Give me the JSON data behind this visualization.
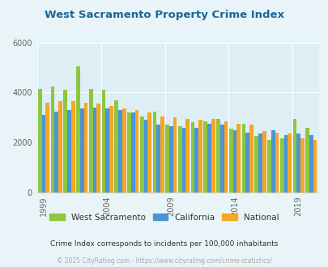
{
  "title": "West Sacramento Property Crime Index",
  "title_color": "#1a6699",
  "years": [
    1999,
    2000,
    2001,
    2002,
    2003,
    2004,
    2005,
    2006,
    2007,
    2008,
    2009,
    2010,
    2011,
    2012,
    2013,
    2014,
    2015,
    2016,
    2017,
    2018,
    2019,
    2020
  ],
  "west_sac": [
    4150,
    4250,
    4100,
    5050,
    4150,
    4100,
    3700,
    3200,
    3050,
    3250,
    2700,
    2650,
    2800,
    2850,
    2950,
    2550,
    2750,
    2250,
    2100,
    2150,
    2950,
    2600
  ],
  "california": [
    3100,
    3250,
    3300,
    3350,
    3400,
    3350,
    3300,
    3200,
    2900,
    2700,
    2650,
    2600,
    2600,
    2750,
    2700,
    2500,
    2400,
    2350,
    2500,
    2300,
    2350,
    2300
  ],
  "national": [
    3600,
    3650,
    3650,
    3600,
    3550,
    3450,
    3350,
    3300,
    3200,
    3050,
    3000,
    2950,
    2900,
    2950,
    2850,
    2750,
    2700,
    2450,
    2400,
    2350,
    2150,
    2100
  ],
  "ws_color": "#8dc63f",
  "ca_color": "#4d94d5",
  "nat_color": "#f5a623",
  "bg_color": "#e8f4f8",
  "plot_bg": "#ddeef5",
  "ylim": [
    0,
    6000
  ],
  "yticks": [
    0,
    2000,
    4000,
    6000
  ],
  "subtitle": "Crime Index corresponds to incidents per 100,000 inhabitants",
  "subtitle_color": "#333333",
  "footer": "© 2025 CityRating.com - https://www.cityrating.com/crime-statistics/",
  "footer_color": "#aaaaaa",
  "x_tick_years": [
    1999,
    2004,
    2009,
    2014,
    2019
  ]
}
